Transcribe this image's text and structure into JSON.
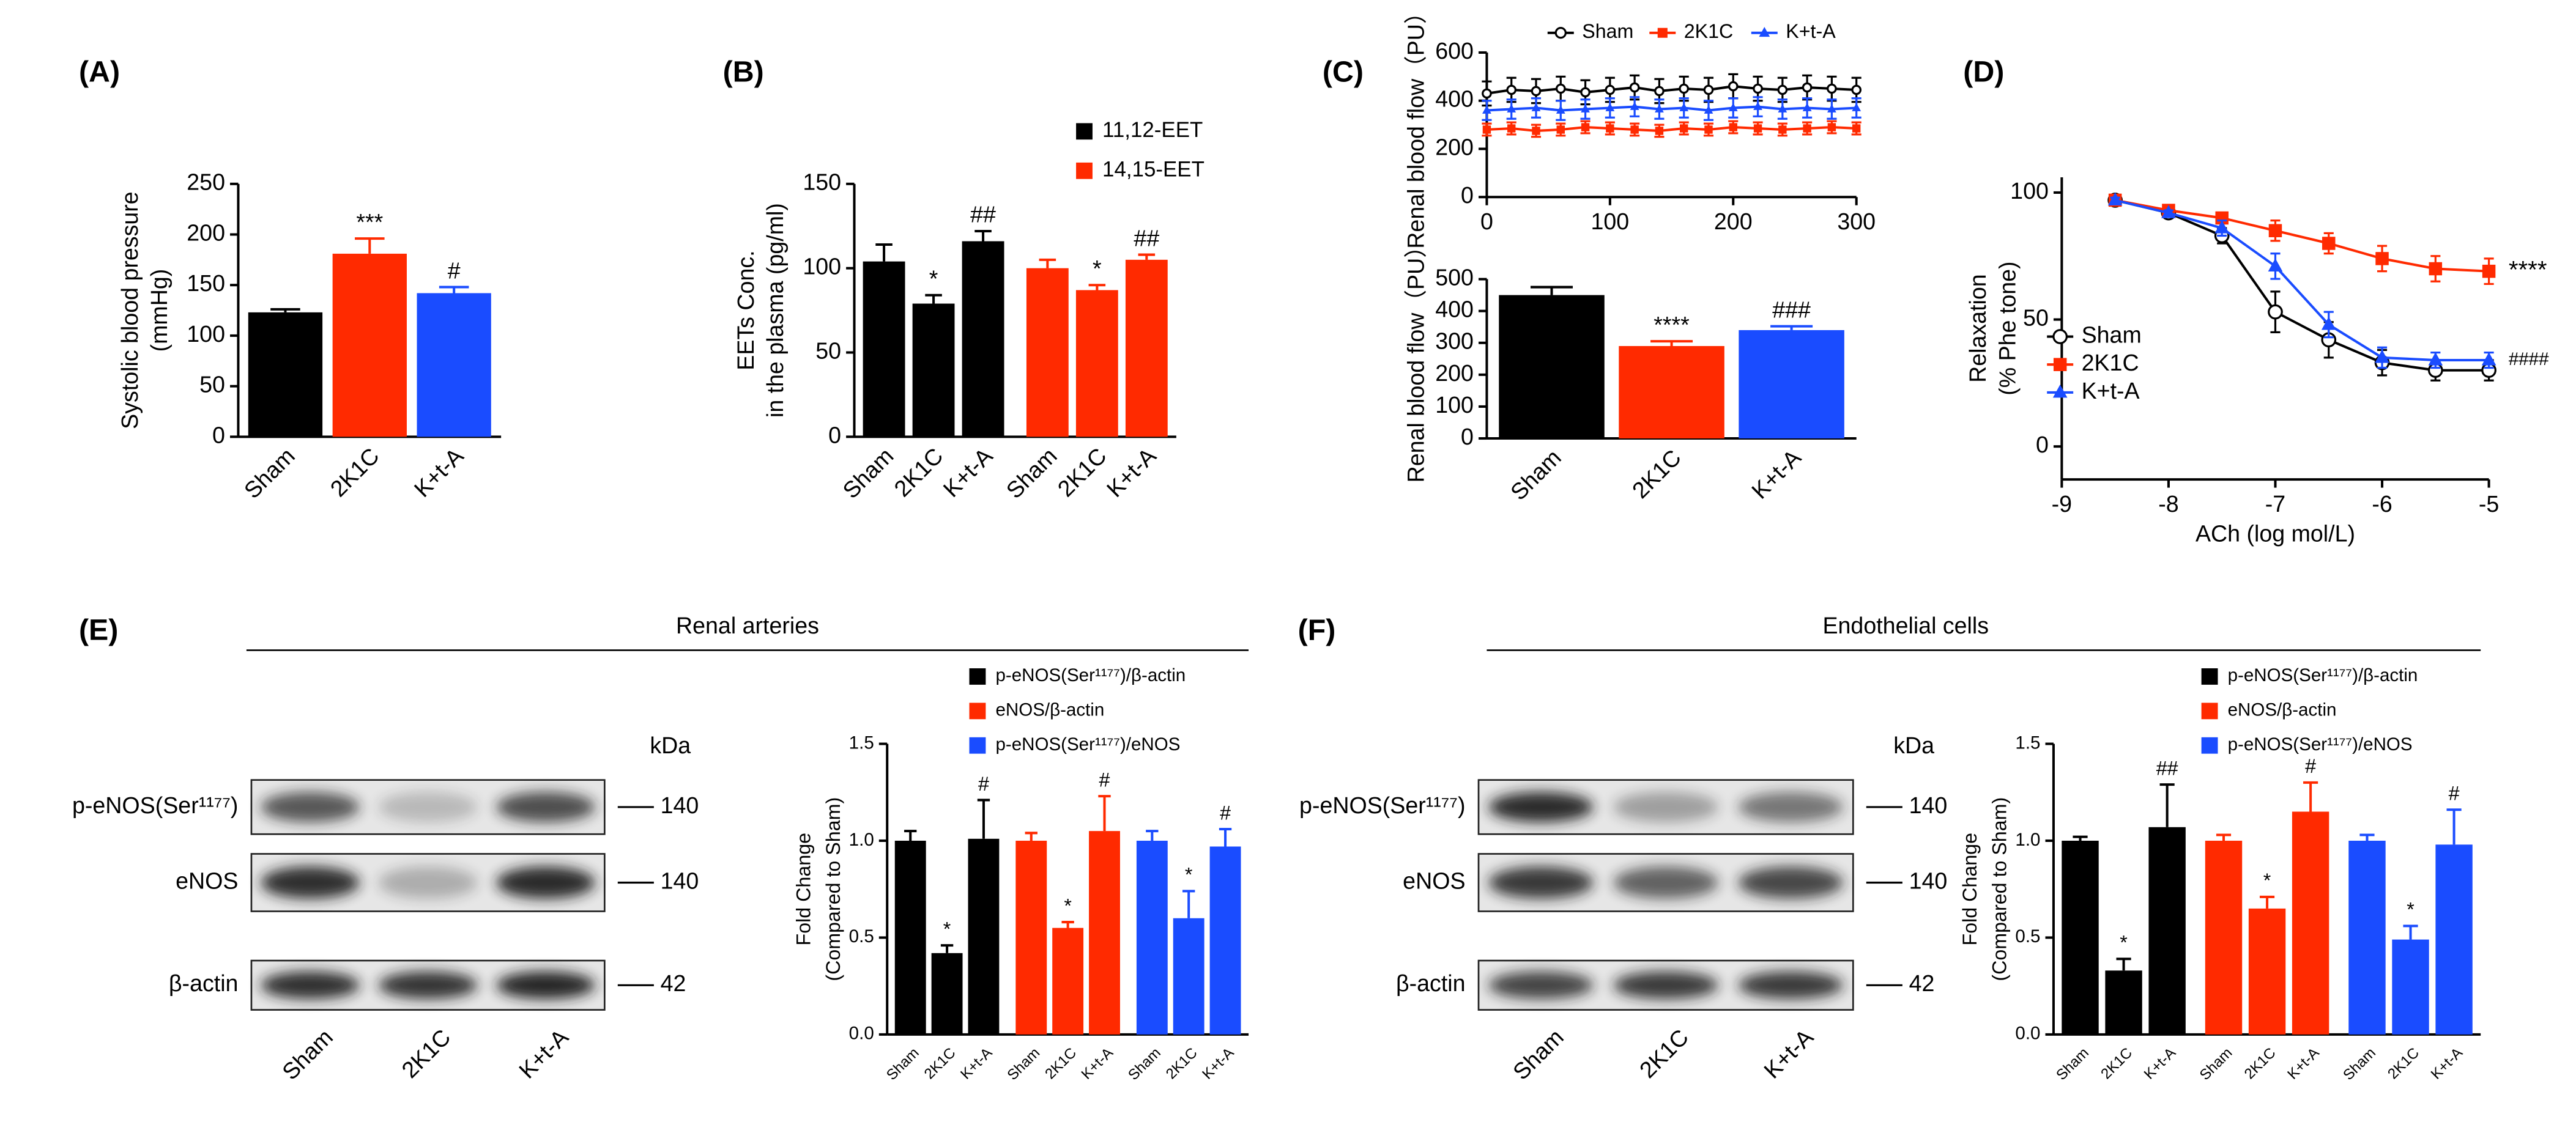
{
  "chart_data": [
    {
      "type": "bar",
      "panel": "(A)",
      "ylabel": [
        "Systolic blood pressure",
        "(mmHg)"
      ],
      "categories": [
        "Sham",
        "2K1C",
        "K+t-A"
      ],
      "values": [
        123,
        181,
        142
      ],
      "errors": [
        3,
        15,
        6
      ],
      "significance": [
        null,
        "***",
        "#"
      ],
      "colors": [
        "#000000",
        "#ff2a00",
        "#1a4cff"
      ],
      "ylim": [
        0,
        250
      ],
      "yticks": [
        0,
        50,
        100,
        150,
        200,
        250
      ]
    },
    {
      "type": "bar",
      "panel": "(B)",
      "ylabel": [
        "EETs Conc.",
        "in the plasma (pg/ml)"
      ],
      "categories": [
        "Sham",
        "2K1C",
        "K+t-A"
      ],
      "legend": "upper-right",
      "series": [
        {
          "name": "11,12-EET",
          "color": "#000000",
          "values": [
            104,
            79,
            116
          ],
          "errors": [
            10,
            5,
            6
          ],
          "significance": [
            null,
            "*",
            "##"
          ]
        },
        {
          "name": "14,15-EET",
          "color": "#ff2a00",
          "values": [
            100,
            87,
            105
          ],
          "errors": [
            5,
            3,
            3
          ],
          "significance": [
            null,
            "*",
            "##"
          ]
        }
      ],
      "ylim": [
        0,
        150
      ],
      "yticks": [
        0,
        50,
        100,
        150
      ]
    },
    {
      "type": "line",
      "panel": "(C)",
      "ylabel": [
        "Renal blood flow（PU）"
      ],
      "legend": "top",
      "x": [
        0,
        20,
        40,
        60,
        80,
        100,
        120,
        140,
        160,
        180,
        200,
        220,
        240,
        260,
        280,
        300
      ],
      "series": [
        {
          "name": "Sham",
          "color": "#000000",
          "marker": "circle-open",
          "values": [
            430,
            445,
            440,
            450,
            435,
            445,
            455,
            440,
            450,
            445,
            460,
            450,
            445,
            455,
            450,
            445
          ],
          "errors": [
            50,
            50,
            50,
            50,
            50,
            50,
            50,
            50,
            50,
            50,
            50,
            50,
            50,
            50,
            50,
            50
          ]
        },
        {
          "name": "2K1C",
          "color": "#ff2a00",
          "marker": "square",
          "values": [
            280,
            285,
            275,
            280,
            290,
            285,
            280,
            275,
            285,
            280,
            290,
            285,
            280,
            285,
            290,
            285
          ],
          "errors": [
            25,
            25,
            25,
            25,
            25,
            25,
            25,
            25,
            25,
            25,
            25,
            25,
            25,
            25,
            25,
            25
          ]
        },
        {
          "name": "K+t-A",
          "color": "#1a4cff",
          "marker": "triangle",
          "values": [
            360,
            365,
            370,
            360,
            365,
            370,
            375,
            365,
            370,
            360,
            370,
            375,
            365,
            370,
            365,
            370
          ],
          "errors": [
            40,
            40,
            40,
            40,
            40,
            40,
            40,
            40,
            40,
            40,
            40,
            40,
            40,
            40,
            40,
            40
          ]
        }
      ],
      "xlim": [
        0,
        300
      ],
      "xticks": [
        0,
        100,
        200,
        300
      ],
      "ylim": [
        0,
        600
      ],
      "yticks": [
        0,
        200,
        400,
        600
      ]
    },
    {
      "type": "bar",
      "ylabel": [
        "Renal blood flow（PU）"
      ],
      "categories": [
        "Sham",
        "2K1C",
        "K+t-A"
      ],
      "values": [
        450,
        290,
        340
      ],
      "errors": [
        25,
        15,
        12
      ],
      "significance": [
        null,
        "****",
        "###"
      ],
      "colors": [
        "#000000",
        "#ff2a00",
        "#1a4cff"
      ],
      "ylim": [
        0,
        500
      ],
      "yticks": [
        0,
        100,
        200,
        300,
        400,
        500
      ]
    },
    {
      "type": "line",
      "panel": "(D)",
      "ylabel": [
        "Relaxation",
        "(% Phe tone)"
      ],
      "xlabel": "ACh (log mol/L)",
      "legend": "lower-left",
      "x": [
        -8.5,
        -8,
        -7.5,
        -7,
        -6.5,
        -6,
        -5.5,
        -5
      ],
      "series": [
        {
          "name": "Sham",
          "color": "#000000",
          "marker": "circle-open",
          "values": [
            97,
            92,
            83,
            53,
            42,
            33,
            30,
            30
          ],
          "errors": [
            1,
            2,
            3,
            8,
            7,
            5,
            4,
            4
          ]
        },
        {
          "name": "2K1C",
          "color": "#ff2a00",
          "marker": "square",
          "values": [
            97,
            93,
            90,
            85,
            80,
            74,
            70,
            69
          ],
          "errors": [
            1,
            2,
            2,
            4,
            4,
            5,
            5,
            5
          ],
          "annotation": "****"
        },
        {
          "name": "K+t-A",
          "color": "#1a4cff",
          "marker": "triangle",
          "values": [
            97,
            92,
            86,
            71,
            48,
            35,
            34,
            34
          ],
          "errors": [
            1,
            1,
            3,
            5,
            5,
            4,
            3,
            3
          ],
          "annotation": "####"
        }
      ],
      "xlim": [
        -9,
        -5
      ],
      "xticks": [
        -9,
        -8,
        -7,
        -6,
        -5
      ],
      "ylim": [
        -13,
        106
      ],
      "yticks": [
        0,
        50,
        100
      ]
    },
    {
      "type": "bar",
      "ylabel": [
        "Fold Change",
        "(Compared to Sham)"
      ],
      "categories": [
        "Sham",
        "2K1C",
        "K+t-A"
      ],
      "legend": "upper-left",
      "series": [
        {
          "name": "p-eNOS(Ser¹¹⁷⁷)/β-actin",
          "color": "#000000",
          "values": [
            1.0,
            0.42,
            1.01
          ],
          "errors": [
            0.05,
            0.04,
            0.2
          ],
          "significance": [
            null,
            "*",
            "#"
          ]
        },
        {
          "name": "eNOS/β-actin",
          "color": "#ff2a00",
          "values": [
            1.0,
            0.55,
            1.05
          ],
          "errors": [
            0.04,
            0.03,
            0.18
          ],
          "significance": [
            null,
            "*",
            "#"
          ]
        },
        {
          "name": "p-eNOS(Ser¹¹⁷⁷)/eNOS",
          "color": "#1a4cff",
          "values": [
            1.0,
            0.6,
            0.97
          ],
          "errors": [
            0.05,
            0.14,
            0.09
          ],
          "significance": [
            null,
            "*",
            "#"
          ]
        }
      ],
      "ylim": [
        0,
        1.5
      ],
      "yticks": [
        {
          "value": 0,
          "label": "0.0"
        },
        {
          "value": 0.5,
          "label": "0.5"
        },
        {
          "value": 1,
          "label": "1.0"
        },
        {
          "value": 1.5,
          "label": "1.5"
        }
      ]
    },
    {
      "type": "bar",
      "ylabel": [
        "Fold Change",
        "(Compared to Sham)"
      ],
      "categories": [
        "Sham",
        "2K1C",
        "K+t-A"
      ],
      "legend": "upper-left",
      "series": [
        {
          "name": "p-eNOS(Ser¹¹⁷⁷)/β-actin",
          "color": "#000000",
          "values": [
            1.0,
            0.33,
            1.07
          ],
          "errors": [
            0.02,
            0.06,
            0.22
          ],
          "significance": [
            null,
            "*",
            "##"
          ]
        },
        {
          "name": "eNOS/β-actin",
          "color": "#ff2a00",
          "values": [
            1.0,
            0.65,
            1.15
          ],
          "errors": [
            0.03,
            0.06,
            0.15
          ],
          "significance": [
            null,
            "*",
            "#"
          ]
        },
        {
          "name": "p-eNOS(Ser¹¹⁷⁷)/eNOS",
          "color": "#1a4cff",
          "values": [
            1.0,
            0.49,
            0.98
          ],
          "errors": [
            0.03,
            0.07,
            0.18
          ],
          "significance": [
            null,
            "*",
            "#"
          ]
        }
      ],
      "ylim": [
        0,
        1.5
      ],
      "yticks": [
        {
          "value": 0,
          "label": "0.0"
        },
        {
          "value": 0.5,
          "label": "0.5"
        },
        {
          "value": 1,
          "label": "1.0"
        },
        {
          "value": 1.5,
          "label": "1.5"
        }
      ]
    }
  ],
  "blots": [
    {
      "panel": "(E)",
      "title": "Renal arteries",
      "unit": "kDa",
      "lanes": [
        "Sham",
        "2K1C",
        "K+t-A"
      ],
      "rows": [
        {
          "label": "p-eNOS(Ser¹¹⁷⁷)",
          "size": 140
        },
        {
          "label": "eNOS",
          "size": 140
        },
        {
          "label": "β-actin",
          "size": 42
        }
      ]
    },
    {
      "panel": "(F)",
      "title": "Endothelial cells",
      "unit": "kDa",
      "lanes": [
        "Sham",
        "2K1C",
        "K+t-A"
      ],
      "rows": [
        {
          "label": "p-eNOS(Ser¹¹⁷⁷)",
          "size": 140
        },
        {
          "label": "eNOS",
          "size": 140
        },
        {
          "label": "β-actin",
          "size": 42
        }
      ]
    }
  ]
}
